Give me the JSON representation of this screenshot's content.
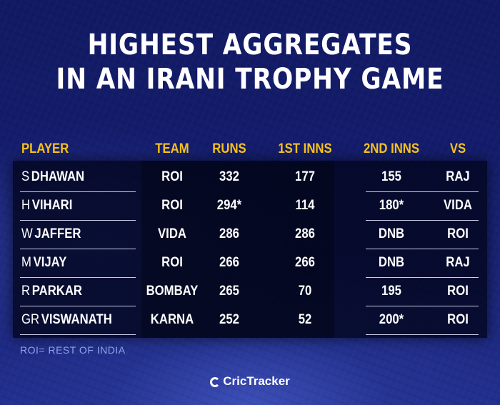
{
  "title": {
    "line1": "HIGHEST AGGREGATES",
    "line2": "IN AN IRANI TROPHY GAME"
  },
  "headers": {
    "player": "PLAYER",
    "team": "TEAM",
    "runs": "RUNS",
    "first_inns": "1ST INNS",
    "second_inns": "2ND INNS",
    "vs": "VS"
  },
  "rows": [
    {
      "initial": "S",
      "surname": "DHAWAN",
      "team": "ROI",
      "runs": "332",
      "first_inns": "177",
      "second_inns": "155",
      "vs": "RAJ"
    },
    {
      "initial": "H",
      "surname": "VIHARI",
      "team": "ROI",
      "runs": "294*",
      "first_inns": "114",
      "second_inns": "180*",
      "vs": "VIDA"
    },
    {
      "initial": "W",
      "surname": "JAFFER",
      "team": "VIDA",
      "runs": "286",
      "first_inns": "286",
      "second_inns": "DNB",
      "vs": "ROI"
    },
    {
      "initial": "M",
      "surname": "VIJAY",
      "team": "ROI",
      "runs": "266",
      "first_inns": "266",
      "second_inns": "DNB",
      "vs": "RAJ"
    },
    {
      "initial": "R",
      "surname": "PARKAR",
      "team": "BOMBAY",
      "runs": "265",
      "first_inns": "70",
      "second_inns": "195",
      "vs": "ROI"
    },
    {
      "initial": "GR",
      "surname": "VISWANATH",
      "team": "KARNA",
      "runs": "252",
      "first_inns": "52",
      "second_inns": "200*",
      "vs": "ROI"
    }
  ],
  "footnote": "ROI= REST OF INDIA",
  "brand": {
    "name": "CricTracker",
    "icon": "crictracker-logo-icon"
  },
  "colors": {
    "header_text": "#f7c21a",
    "background": "#141d6c",
    "footnote_text": "#8fa3e6"
  }
}
